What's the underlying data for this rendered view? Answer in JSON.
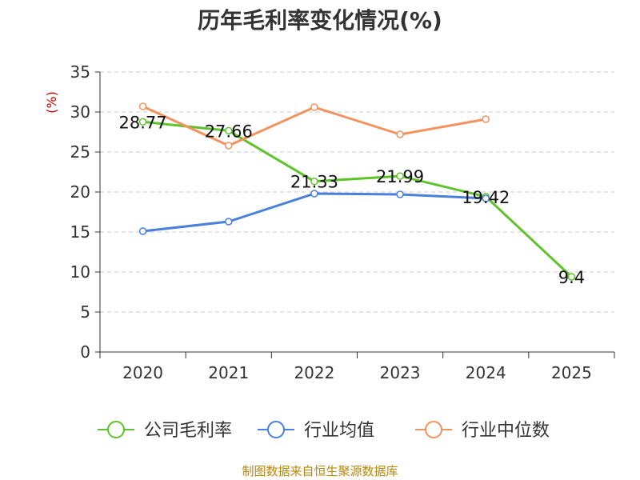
{
  "chart_data": {
    "type": "line",
    "title": "历年毛利率变化情况(%)",
    "ylabel": "(%)",
    "xlabel": "",
    "categories": [
      "2020",
      "2021",
      "2022",
      "2023",
      "2024",
      "2025"
    ],
    "ylim": [
      0,
      35
    ],
    "yticks": [
      0,
      5,
      10,
      15,
      20,
      25,
      30,
      35
    ],
    "grid": true,
    "legend_position": "bottom",
    "series": [
      {
        "name": "公司毛利率",
        "color": "#5ec32b",
        "values": [
          28.77,
          27.66,
          21.33,
          21.99,
          19.42,
          9.4
        ],
        "labels": [
          "28.77",
          "27.66",
          "21.33",
          "21.99",
          "19.42",
          "9.4"
        ]
      },
      {
        "name": "行业均值",
        "color": "#4a7fdb",
        "values": [
          15.1,
          16.3,
          19.8,
          19.7,
          19.2,
          null
        ]
      },
      {
        "name": "行业中位数",
        "color": "#f4925e",
        "values": [
          30.7,
          25.8,
          30.6,
          27.2,
          29.1,
          null
        ]
      }
    ]
  },
  "source": "制图数据来自恒生聚源数据库"
}
